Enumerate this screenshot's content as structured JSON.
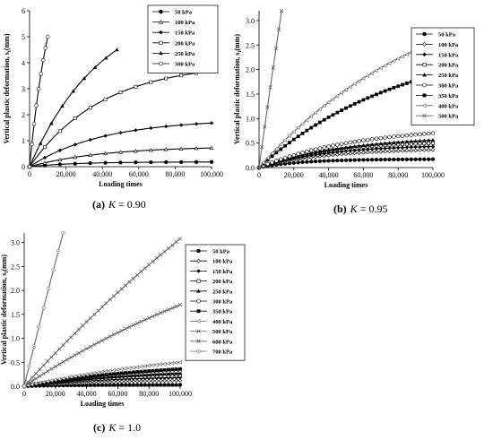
{
  "captions": {
    "a": {
      "prefix": "(a)",
      "var": "K",
      "eq": "= 0.90"
    },
    "b": {
      "prefix": "(b)",
      "var": "K",
      "eq": "= 0.95"
    },
    "c": {
      "prefix": "(c)",
      "var": "K",
      "eq": "= 1.0"
    }
  },
  "chart_data": [
    {
      "id": "a",
      "type": "line",
      "xlabel": "Loading times",
      "ylabel": "Vertical plastic deformation, s",
      "ylabel_sub": "t",
      "ylabel_unit": "(mm)",
      "xlim": [
        0,
        100000
      ],
      "ylim": [
        0,
        6
      ],
      "xticks": [
        "0",
        "20,000",
        "40,000",
        "60,000",
        "80,000",
        "100,000"
      ],
      "yticks": [
        "0",
        "1",
        "2",
        "3",
        "4",
        "5",
        "6"
      ],
      "legend_position": "top-right",
      "series": [
        {
          "name": "50 kPa",
          "marker": "filled-circle",
          "final": 0.18,
          "end": 100000,
          "k": 4
        },
        {
          "name": "100 kPa",
          "marker": "open-triangle",
          "final": 0.72,
          "end": 100000,
          "k": 2.5
        },
        {
          "name": "150 kPa",
          "marker": "filled-diamond",
          "final": 1.68,
          "end": 100000,
          "k": 2.5
        },
        {
          "name": "200 kPa",
          "marker": "open-square",
          "final": 3.68,
          "end": 100000,
          "k": 2.5
        },
        {
          "name": "250 kPa",
          "marker": "filled-triangle",
          "final": 4.5,
          "end": 48000,
          "k": 1.2
        },
        {
          "name": "300 kPa",
          "marker": "open-circle",
          "final": 5.0,
          "end": 10000,
          "k": 0.8
        }
      ]
    },
    {
      "id": "b",
      "type": "line",
      "xlabel": "Loading times",
      "ylabel": "Vertical plastic deformation, s",
      "ylabel_sub": "t",
      "ylabel_unit": "(mm)",
      "xlim": [
        0,
        100000
      ],
      "ylim": [
        0,
        3.2
      ],
      "xticks": [
        "0",
        "20,000",
        "40,000",
        "60,000",
        "80,000",
        "100,000"
      ],
      "yticks": [
        "0.0",
        "0.5",
        "1.0",
        "1.5",
        "2.0",
        "2.5",
        "3.0"
      ],
      "legend_position": "top-right",
      "series": [
        {
          "name": "50 kPa",
          "marker": "filled-circle",
          "final": 0.17,
          "end": 100000,
          "k": 4
        },
        {
          "name": "100 kPa",
          "marker": "open-diamond",
          "final": 0.36,
          "end": 100000,
          "k": 2.5
        },
        {
          "name": "150 kPa",
          "marker": "filled-diamond",
          "final": 0.43,
          "end": 100000,
          "k": 2.5
        },
        {
          "name": "200 kPa",
          "marker": "open-square",
          "final": 0.5,
          "end": 100000,
          "k": 2.5
        },
        {
          "name": "250 kPa",
          "marker": "filled-triangle",
          "final": 0.56,
          "end": 100000,
          "k": 2
        },
        {
          "name": "300 kPa",
          "marker": "open-circle",
          "final": 0.7,
          "end": 100000,
          "k": 1.8
        },
        {
          "name": "350 kPa",
          "marker": "filled-square",
          "final": 1.88,
          "end": 100000,
          "k": 1.2
        },
        {
          "name": "400 kPa",
          "marker": "open-left-triangle",
          "final": 2.55,
          "end": 100000,
          "k": 1.0
        },
        {
          "name": "500 kPa",
          "marker": "x-mark",
          "final": 3.2,
          "end": 13000,
          "k": 0.1
        }
      ]
    },
    {
      "id": "c",
      "type": "line",
      "xlabel": "Loading times",
      "ylabel": "Vertical plastic deformation, s",
      "ylabel_sub": "t",
      "ylabel_unit": "(mm)",
      "xlim": [
        0,
        100000
      ],
      "ylim": [
        0,
        3.2
      ],
      "xticks": [
        "0",
        "20,000",
        "40,000",
        "60,000",
        "80,000",
        "100,000"
      ],
      "yticks": [
        "0.0",
        "0.5",
        "1.0",
        "1.5",
        "2.0",
        "2.5",
        "3.0"
      ],
      "legend_position": "top-right",
      "series": [
        {
          "name": "50 kPa",
          "marker": "filled-circle",
          "final": 0.03,
          "end": 100000,
          "k": 3
        },
        {
          "name": "100 kPa",
          "marker": "open-diamond",
          "final": 0.12,
          "end": 100000,
          "k": 2
        },
        {
          "name": "150 kPa",
          "marker": "filled-diamond",
          "final": 0.18,
          "end": 100000,
          "k": 2
        },
        {
          "name": "200 kPa",
          "marker": "open-square",
          "final": 0.22,
          "end": 100000,
          "k": 2
        },
        {
          "name": "250 kPa",
          "marker": "filled-triangle",
          "final": 0.27,
          "end": 100000,
          "k": 1.5
        },
        {
          "name": "300 kPa",
          "marker": "open-circle",
          "final": 0.32,
          "end": 100000,
          "k": 1.5
        },
        {
          "name": "350 kPa",
          "marker": "filled-square",
          "final": 0.36,
          "end": 100000,
          "k": 1.2
        },
        {
          "name": "400 kPa",
          "marker": "open-left-triangle",
          "final": 0.5,
          "end": 100000,
          "k": 0.8
        },
        {
          "name": "500 kPa",
          "marker": "x-mark",
          "final": 1.7,
          "end": 100000,
          "k": 0.5
        },
        {
          "name": "600 kPa",
          "marker": "x-mark",
          "final": 3.08,
          "end": 100000,
          "k": 0.3
        },
        {
          "name": "700 kPa",
          "marker": "open-circle-dot",
          "final": 3.2,
          "end": 25000,
          "k": 0.1
        }
      ]
    }
  ]
}
